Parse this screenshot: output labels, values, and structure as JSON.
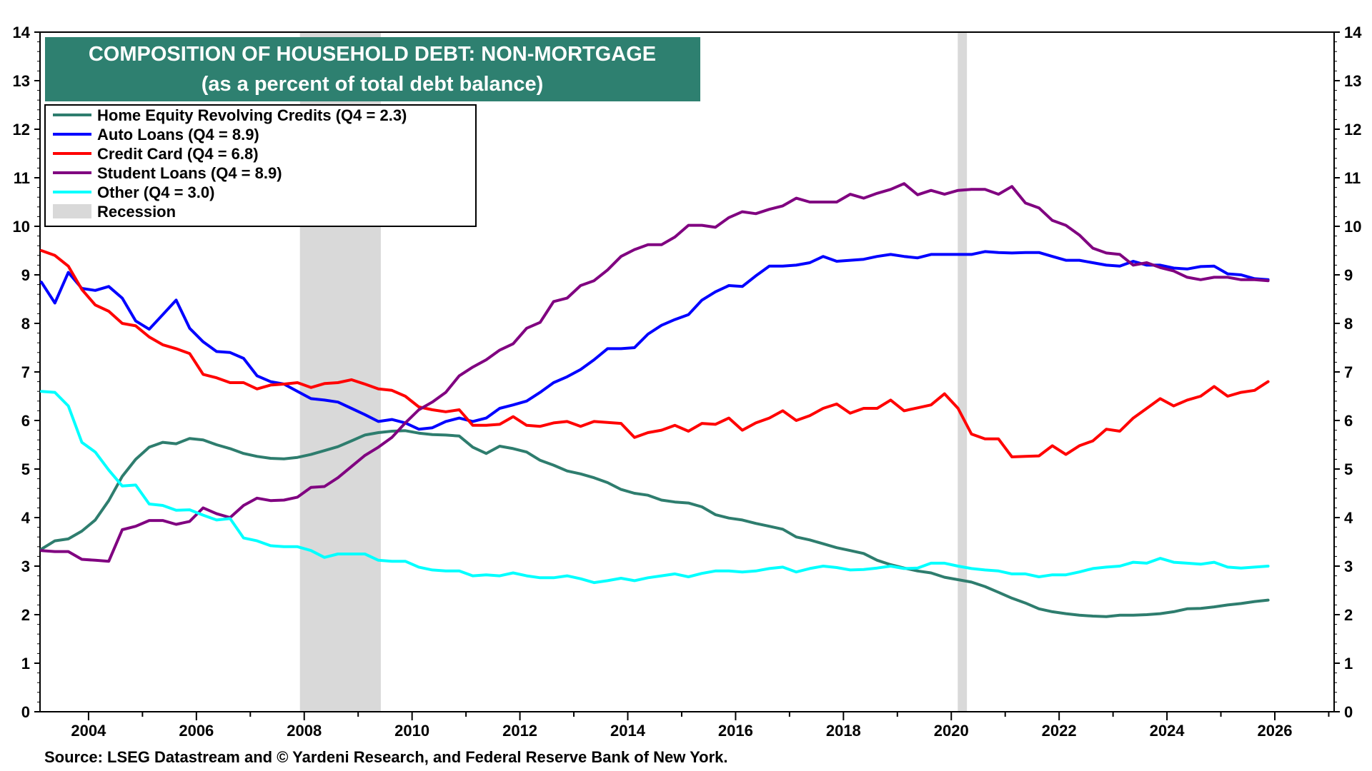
{
  "chart_data": {
    "type": "line",
    "title": "COMPOSITION OF HOUSEHOLD DEBT: NON-MORTGAGE",
    "subtitle": "(as a percent of total debt balance)",
    "source": "Source: LSEG Datastream and © Yardeni Research, and Federal Reserve Bank of New York.",
    "xlim": [
      2003.1,
      2027.1
    ],
    "ylim": [
      0,
      14
    ],
    "x_ticks": [
      2004,
      2006,
      2008,
      2010,
      2012,
      2014,
      2016,
      2018,
      2020,
      2022,
      2024,
      2026
    ],
    "x_tick_labels": [
      "2004",
      "2006",
      "2008",
      "2010",
      "2012",
      "2014",
      "2016",
      "2018",
      "2020",
      "2022",
      "2024",
      "2026"
    ],
    "y_ticks": [
      0,
      1,
      2,
      3,
      4,
      5,
      6,
      7,
      8,
      9,
      10,
      11,
      12,
      13,
      14
    ],
    "y_tick_labels": [
      "0",
      "1",
      "2",
      "3",
      "4",
      "5",
      "6",
      "7",
      "8",
      "9",
      "10",
      "11",
      "12",
      "13",
      "14"
    ],
    "recessions": [
      {
        "start": 2007.92,
        "end": 2009.42
      },
      {
        "start": 2020.12,
        "end": 2020.29
      }
    ],
    "recession_label": "Recession",
    "recession_color": "#d9d9d9",
    "title_bg_color": "#2e8070",
    "series": [
      {
        "name": "Home Equity Revolving Credits",
        "legend_label": "Home Equity Revolving Credits  (Q4  = 2.3)",
        "color": "#2e7d6e",
        "x": [
          2003.125,
          2003.375,
          2003.625,
          2003.875,
          2004.125,
          2004.375,
          2004.625,
          2004.875,
          2005.125,
          2005.375,
          2005.625,
          2005.875,
          2006.125,
          2006.375,
          2006.625,
          2006.875,
          2007.125,
          2007.375,
          2007.625,
          2007.875,
          2008.125,
          2008.375,
          2008.625,
          2008.875,
          2009.125,
          2009.375,
          2009.625,
          2009.875,
          2010.125,
          2010.375,
          2010.625,
          2010.875,
          2011.125,
          2011.375,
          2011.625,
          2011.875,
          2012.125,
          2012.375,
          2012.625,
          2012.875,
          2013.125,
          2013.375,
          2013.625,
          2013.875,
          2014.125,
          2014.375,
          2014.625,
          2014.875,
          2015.125,
          2015.375,
          2015.625,
          2015.875,
          2016.125,
          2016.375,
          2016.625,
          2016.875,
          2017.125,
          2017.375,
          2017.625,
          2017.875,
          2018.125,
          2018.375,
          2018.625,
          2018.875,
          2019.125,
          2019.375,
          2019.625,
          2019.875,
          2020.125,
          2020.375,
          2020.625,
          2020.875,
          2021.125,
          2021.375,
          2021.625,
          2021.875,
          2022.125,
          2022.375,
          2022.625,
          2022.875,
          2023.125,
          2023.375,
          2023.625,
          2023.875,
          2024.125,
          2024.375,
          2024.625,
          2024.875,
          2025.125,
          2025.375,
          2025.625,
          2025.875
        ],
        "values": [
          3.35,
          3.52,
          3.56,
          3.72,
          3.95,
          4.35,
          4.85,
          5.2,
          5.45,
          5.55,
          5.52,
          5.63,
          5.6,
          5.5,
          5.42,
          5.32,
          5.26,
          5.22,
          5.21,
          5.24,
          5.3,
          5.38,
          5.46,
          5.58,
          5.7,
          5.75,
          5.78,
          5.79,
          5.74,
          5.71,
          5.7,
          5.68,
          5.45,
          5.32,
          5.47,
          5.42,
          5.35,
          5.18,
          5.08,
          4.96,
          4.9,
          4.82,
          4.72,
          4.58,
          4.5,
          4.46,
          4.36,
          4.32,
          4.3,
          4.22,
          4.06,
          3.99,
          3.95,
          3.88,
          3.82,
          3.76,
          3.6,
          3.54,
          3.46,
          3.38,
          3.32,
          3.26,
          3.12,
          3.03,
          2.96,
          2.9,
          2.86,
          2.77,
          2.72,
          2.67,
          2.58,
          2.46,
          2.34,
          2.24,
          2.12,
          2.06,
          2.02,
          1.99,
          1.97,
          1.96,
          1.99,
          1.99,
          2.0,
          2.02,
          2.06,
          2.12,
          2.13,
          2.16,
          2.2,
          2.23,
          2.27,
          2.3
        ]
      },
      {
        "name": "Auto Loans",
        "legend_label": "Auto Loans (Q4  = 8.9)",
        "color": "#0000ff",
        "x": [
          2003.125,
          2003.375,
          2003.625,
          2003.875,
          2004.125,
          2004.375,
          2004.625,
          2004.875,
          2005.125,
          2005.375,
          2005.625,
          2005.875,
          2006.125,
          2006.375,
          2006.625,
          2006.875,
          2007.125,
          2007.375,
          2007.625,
          2007.875,
          2008.125,
          2008.375,
          2008.625,
          2008.875,
          2009.125,
          2009.375,
          2009.625,
          2009.875,
          2010.125,
          2010.375,
          2010.625,
          2010.875,
          2011.125,
          2011.375,
          2011.625,
          2011.875,
          2012.125,
          2012.375,
          2012.625,
          2012.875,
          2013.125,
          2013.375,
          2013.625,
          2013.875,
          2014.125,
          2014.375,
          2014.625,
          2014.875,
          2015.125,
          2015.375,
          2015.625,
          2015.875,
          2016.125,
          2016.375,
          2016.625,
          2016.875,
          2017.125,
          2017.375,
          2017.625,
          2017.875,
          2018.125,
          2018.375,
          2018.625,
          2018.875,
          2019.125,
          2019.375,
          2019.625,
          2019.875,
          2020.125,
          2020.375,
          2020.625,
          2020.875,
          2021.125,
          2021.375,
          2021.625,
          2021.875,
          2022.125,
          2022.375,
          2022.625,
          2022.875,
          2023.125,
          2023.375,
          2023.625,
          2023.875,
          2024.125,
          2024.375,
          2024.625,
          2024.875,
          2025.125,
          2025.375,
          2025.625,
          2025.875
        ],
        "values": [
          8.85,
          8.42,
          9.05,
          8.72,
          8.68,
          8.76,
          8.52,
          8.05,
          7.88,
          8.18,
          8.48,
          7.9,
          7.62,
          7.42,
          7.4,
          7.28,
          6.92,
          6.8,
          6.75,
          6.6,
          6.45,
          6.42,
          6.38,
          6.25,
          6.12,
          5.98,
          6.02,
          5.95,
          5.82,
          5.85,
          5.98,
          6.05,
          5.98,
          6.05,
          6.25,
          6.32,
          6.4,
          6.58,
          6.78,
          6.9,
          7.05,
          7.25,
          7.48,
          7.48,
          7.5,
          7.78,
          7.96,
          8.08,
          8.18,
          8.48,
          8.65,
          8.78,
          8.76,
          8.98,
          9.18,
          9.18,
          9.2,
          9.25,
          9.38,
          9.28,
          9.3,
          9.32,
          9.38,
          9.42,
          9.38,
          9.35,
          9.42,
          9.42,
          9.42,
          9.42,
          9.48,
          9.46,
          9.45,
          9.46,
          9.46,
          9.38,
          9.3,
          9.3,
          9.25,
          9.2,
          9.18,
          9.28,
          9.2,
          9.2,
          9.14,
          9.12,
          9.17,
          9.18,
          9.02,
          9.0,
          8.92,
          8.9
        ]
      },
      {
        "name": "Credit Card",
        "legend_label": "Credit Card (Q4  = 6.8)",
        "color": "#ff0000",
        "x": [
          2003.125,
          2003.375,
          2003.625,
          2003.875,
          2004.125,
          2004.375,
          2004.625,
          2004.875,
          2005.125,
          2005.375,
          2005.625,
          2005.875,
          2006.125,
          2006.375,
          2006.625,
          2006.875,
          2007.125,
          2007.375,
          2007.625,
          2007.875,
          2008.125,
          2008.375,
          2008.625,
          2008.875,
          2009.125,
          2009.375,
          2009.625,
          2009.875,
          2010.125,
          2010.375,
          2010.625,
          2010.875,
          2011.125,
          2011.375,
          2011.625,
          2011.875,
          2012.125,
          2012.375,
          2012.625,
          2012.875,
          2013.125,
          2013.375,
          2013.625,
          2013.875,
          2014.125,
          2014.375,
          2014.625,
          2014.875,
          2015.125,
          2015.375,
          2015.625,
          2015.875,
          2016.125,
          2016.375,
          2016.625,
          2016.875,
          2017.125,
          2017.375,
          2017.625,
          2017.875,
          2018.125,
          2018.375,
          2018.625,
          2018.875,
          2019.125,
          2019.375,
          2019.625,
          2019.875,
          2020.125,
          2020.375,
          2020.625,
          2020.875,
          2021.125,
          2021.375,
          2021.625,
          2021.875,
          2022.125,
          2022.375,
          2022.625,
          2022.875,
          2023.125,
          2023.375,
          2023.625,
          2023.875,
          2024.125,
          2024.375,
          2024.625,
          2024.875,
          2025.125,
          2025.375,
          2025.625,
          2025.875
        ],
        "values": [
          9.5,
          9.4,
          9.18,
          8.7,
          8.38,
          8.25,
          8.0,
          7.95,
          7.72,
          7.56,
          7.48,
          7.38,
          6.95,
          6.88,
          6.78,
          6.78,
          6.65,
          6.73,
          6.75,
          6.78,
          6.68,
          6.76,
          6.78,
          6.84,
          6.75,
          6.65,
          6.62,
          6.5,
          6.28,
          6.22,
          6.18,
          6.22,
          5.9,
          5.9,
          5.92,
          6.08,
          5.9,
          5.88,
          5.95,
          5.98,
          5.88,
          5.98,
          5.96,
          5.94,
          5.65,
          5.75,
          5.8,
          5.9,
          5.78,
          5.94,
          5.92,
          6.05,
          5.8,
          5.95,
          6.05,
          6.2,
          6.0,
          6.1,
          6.25,
          6.34,
          6.15,
          6.25,
          6.25,
          6.42,
          6.2,
          6.26,
          6.32,
          6.55,
          6.25,
          5.72,
          5.62,
          5.62,
          5.25,
          5.26,
          5.27,
          5.48,
          5.3,
          5.48,
          5.58,
          5.82,
          5.78,
          6.05,
          6.25,
          6.45,
          6.3,
          6.42,
          6.5,
          6.7,
          6.5,
          6.58,
          6.62,
          6.8
        ]
      },
      {
        "name": "Student Loans",
        "legend_label": "Student Loans (Q4  = 8.9)",
        "color": "#800080",
        "x": [
          2003.125,
          2003.375,
          2003.625,
          2003.875,
          2004.125,
          2004.375,
          2004.625,
          2004.875,
          2005.125,
          2005.375,
          2005.625,
          2005.875,
          2006.125,
          2006.375,
          2006.625,
          2006.875,
          2007.125,
          2007.375,
          2007.625,
          2007.875,
          2008.125,
          2008.375,
          2008.625,
          2008.875,
          2009.125,
          2009.375,
          2009.625,
          2009.875,
          2010.125,
          2010.375,
          2010.625,
          2010.875,
          2011.125,
          2011.375,
          2011.625,
          2011.875,
          2012.125,
          2012.375,
          2012.625,
          2012.875,
          2013.125,
          2013.375,
          2013.625,
          2013.875,
          2014.125,
          2014.375,
          2014.625,
          2014.875,
          2015.125,
          2015.375,
          2015.625,
          2015.875,
          2016.125,
          2016.375,
          2016.625,
          2016.875,
          2017.125,
          2017.375,
          2017.625,
          2017.875,
          2018.125,
          2018.375,
          2018.625,
          2018.875,
          2019.125,
          2019.375,
          2019.625,
          2019.875,
          2020.125,
          2020.375,
          2020.625,
          2020.875,
          2021.125,
          2021.375,
          2021.625,
          2021.875,
          2022.125,
          2022.375,
          2022.625,
          2022.875,
          2023.125,
          2023.375,
          2023.625,
          2023.875,
          2024.125,
          2024.375,
          2024.625,
          2024.875,
          2025.125,
          2025.375,
          2025.625,
          2025.875
        ],
        "values": [
          3.32,
          3.3,
          3.3,
          3.14,
          3.12,
          3.1,
          3.75,
          3.82,
          3.94,
          3.94,
          3.86,
          3.92,
          4.2,
          4.08,
          4.0,
          4.25,
          4.4,
          4.35,
          4.36,
          4.42,
          4.62,
          4.64,
          4.82,
          5.05,
          5.28,
          5.45,
          5.65,
          5.95,
          6.22,
          6.38,
          6.58,
          6.92,
          7.1,
          7.25,
          7.45,
          7.58,
          7.9,
          8.02,
          8.45,
          8.52,
          8.78,
          8.88,
          9.1,
          9.38,
          9.52,
          9.62,
          9.62,
          9.78,
          10.02,
          10.02,
          9.98,
          10.18,
          10.3,
          10.26,
          10.35,
          10.42,
          10.58,
          10.5,
          10.5,
          10.5,
          10.66,
          10.58,
          10.68,
          10.76,
          10.88,
          10.65,
          10.74,
          10.66,
          10.74,
          10.76,
          10.76,
          10.66,
          10.82,
          10.48,
          10.38,
          10.12,
          10.02,
          9.82,
          9.55,
          9.45,
          9.42,
          9.2,
          9.25,
          9.15,
          9.08,
          8.95,
          8.9,
          8.95,
          8.95,
          8.9,
          8.9,
          8.88
        ]
      },
      {
        "name": "Other",
        "legend_label": "Other (Q4  = 3.0)",
        "color": "#00ffff",
        "x": [
          2003.125,
          2003.375,
          2003.625,
          2003.875,
          2004.125,
          2004.375,
          2004.625,
          2004.875,
          2005.125,
          2005.375,
          2005.625,
          2005.875,
          2006.125,
          2006.375,
          2006.625,
          2006.875,
          2007.125,
          2007.375,
          2007.625,
          2007.875,
          2008.125,
          2008.375,
          2008.625,
          2008.875,
          2009.125,
          2009.375,
          2009.625,
          2009.875,
          2010.125,
          2010.375,
          2010.625,
          2010.875,
          2011.125,
          2011.375,
          2011.625,
          2011.875,
          2012.125,
          2012.375,
          2012.625,
          2012.875,
          2013.125,
          2013.375,
          2013.625,
          2013.875,
          2014.125,
          2014.375,
          2014.625,
          2014.875,
          2015.125,
          2015.375,
          2015.625,
          2015.875,
          2016.125,
          2016.375,
          2016.625,
          2016.875,
          2017.125,
          2017.375,
          2017.625,
          2017.875,
          2018.125,
          2018.375,
          2018.625,
          2018.875,
          2019.125,
          2019.375,
          2019.625,
          2019.875,
          2020.125,
          2020.375,
          2020.625,
          2020.875,
          2021.125,
          2021.375,
          2021.625,
          2021.875,
          2022.125,
          2022.375,
          2022.625,
          2022.875,
          2023.125,
          2023.375,
          2023.625,
          2023.875,
          2024.125,
          2024.375,
          2024.625,
          2024.875,
          2025.125,
          2025.375,
          2025.625,
          2025.875
        ],
        "values": [
          6.6,
          6.58,
          6.3,
          5.55,
          5.35,
          4.98,
          4.65,
          4.67,
          4.28,
          4.25,
          4.15,
          4.16,
          4.05,
          3.95,
          3.98,
          3.58,
          3.52,
          3.42,
          3.4,
          3.4,
          3.32,
          3.18,
          3.25,
          3.25,
          3.25,
          3.12,
          3.1,
          3.1,
          2.98,
          2.92,
          2.9,
          2.9,
          2.8,
          2.82,
          2.8,
          2.86,
          2.8,
          2.76,
          2.76,
          2.8,
          2.74,
          2.66,
          2.7,
          2.75,
          2.7,
          2.76,
          2.8,
          2.84,
          2.78,
          2.85,
          2.9,
          2.9,
          2.88,
          2.9,
          2.95,
          2.98,
          2.88,
          2.95,
          3.0,
          2.97,
          2.92,
          2.93,
          2.96,
          3.0,
          2.95,
          2.96,
          3.06,
          3.06,
          3.0,
          2.95,
          2.92,
          2.9,
          2.84,
          2.84,
          2.78,
          2.82,
          2.82,
          2.88,
          2.95,
          2.98,
          3.0,
          3.08,
          3.06,
          3.16,
          3.08,
          3.06,
          3.04,
          3.08,
          2.98,
          2.96,
          2.98,
          3.0
        ]
      }
    ]
  }
}
